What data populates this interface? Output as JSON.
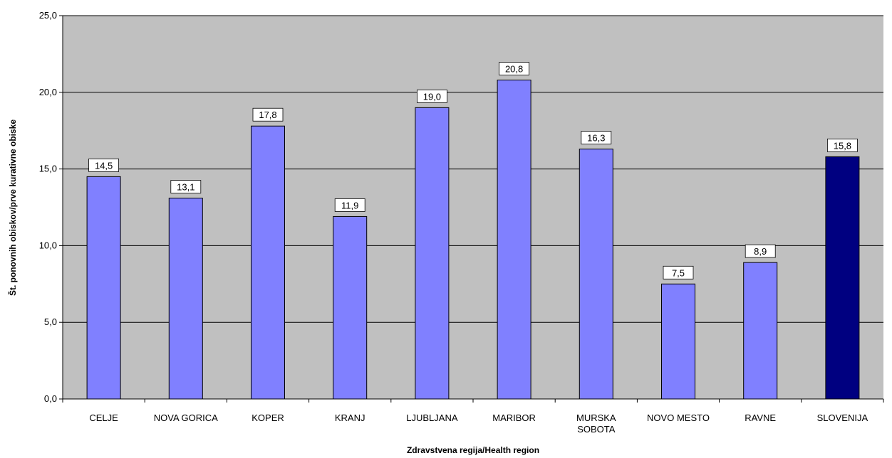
{
  "chart_data": {
    "type": "bar",
    "categories": [
      "CELJE",
      "NOVA GORICA",
      "KOPER",
      "KRANJ",
      "LJUBLJANA",
      "MARIBOR",
      "MURSKA SOBOTA",
      "NOVO MESTO",
      "RAVNE",
      "SLOVENIJA"
    ],
    "values": [
      14.5,
      13.1,
      17.8,
      11.9,
      19.0,
      20.8,
      16.3,
      7.5,
      8.9,
      15.8
    ],
    "value_labels": [
      "14,5",
      "13,1",
      "17,8",
      "11,9",
      "19,0",
      "20,8",
      "16,3",
      "7,5",
      "8,9",
      "15,8"
    ],
    "colors": [
      "#8080ff",
      "#8080ff",
      "#8080ff",
      "#8080ff",
      "#8080ff",
      "#8080ff",
      "#8080ff",
      "#8080ff",
      "#8080ff",
      "#000080"
    ],
    "x_label": "Zdravstvena regija/Health region",
    "y_label": "Št. ponovnih obiskov/prve kurativne obiske",
    "ylim": [
      0,
      25
    ],
    "yticks": [
      {
        "value": 0,
        "label": "0,0"
      },
      {
        "value": 5,
        "label": "5,0"
      },
      {
        "value": 10,
        "label": "10,0"
      },
      {
        "value": 15,
        "label": "15,0"
      },
      {
        "value": 20,
        "label": "20,0"
      },
      {
        "value": 25,
        "label": "25,0"
      }
    ],
    "grid": true,
    "plot_background": "#c0c0c0"
  }
}
